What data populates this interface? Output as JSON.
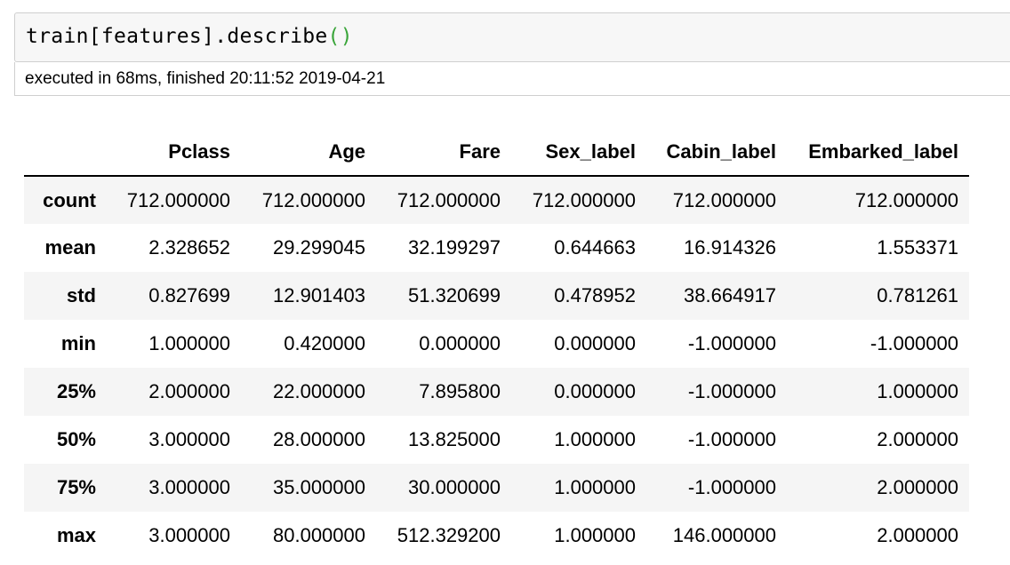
{
  "code_cell": {
    "code_prefix": "train[features].describe",
    "code_parens": "()"
  },
  "execution": {
    "info": "executed in 68ms, finished 20:11:52 2019-04-21"
  },
  "table": {
    "index_header": "",
    "columns": [
      "Pclass",
      "Age",
      "Fare",
      "Sex_label",
      "Cabin_label",
      "Embarked_label"
    ],
    "rows": [
      {
        "index": "count",
        "values": [
          "712.000000",
          "712.000000",
          "712.000000",
          "712.000000",
          "712.000000",
          "712.000000"
        ]
      },
      {
        "index": "mean",
        "values": [
          "2.328652",
          "29.299045",
          "32.199297",
          "0.644663",
          "16.914326",
          "1.553371"
        ]
      },
      {
        "index": "std",
        "values": [
          "0.827699",
          "12.901403",
          "51.320699",
          "0.478952",
          "38.664917",
          "0.781261"
        ]
      },
      {
        "index": "min",
        "values": [
          "1.000000",
          "0.420000",
          "0.000000",
          "0.000000",
          "-1.000000",
          "-1.000000"
        ]
      },
      {
        "index": "25%",
        "values": [
          "2.000000",
          "22.000000",
          "7.895800",
          "0.000000",
          "-1.000000",
          "1.000000"
        ]
      },
      {
        "index": "50%",
        "values": [
          "3.000000",
          "28.000000",
          "13.825000",
          "1.000000",
          "-1.000000",
          "2.000000"
        ]
      },
      {
        "index": "75%",
        "values": [
          "3.000000",
          "35.000000",
          "30.000000",
          "1.000000",
          "-1.000000",
          "2.000000"
        ]
      },
      {
        "index": "max",
        "values": [
          "3.000000",
          "80.000000",
          "512.329200",
          "1.000000",
          "146.000000",
          "2.000000"
        ]
      }
    ]
  },
  "colors": {
    "code_background": "#f7f7f7",
    "border": "#cfcfcf",
    "paren_green": "#3aa53a",
    "row_stripe": "#f5f5f5"
  }
}
